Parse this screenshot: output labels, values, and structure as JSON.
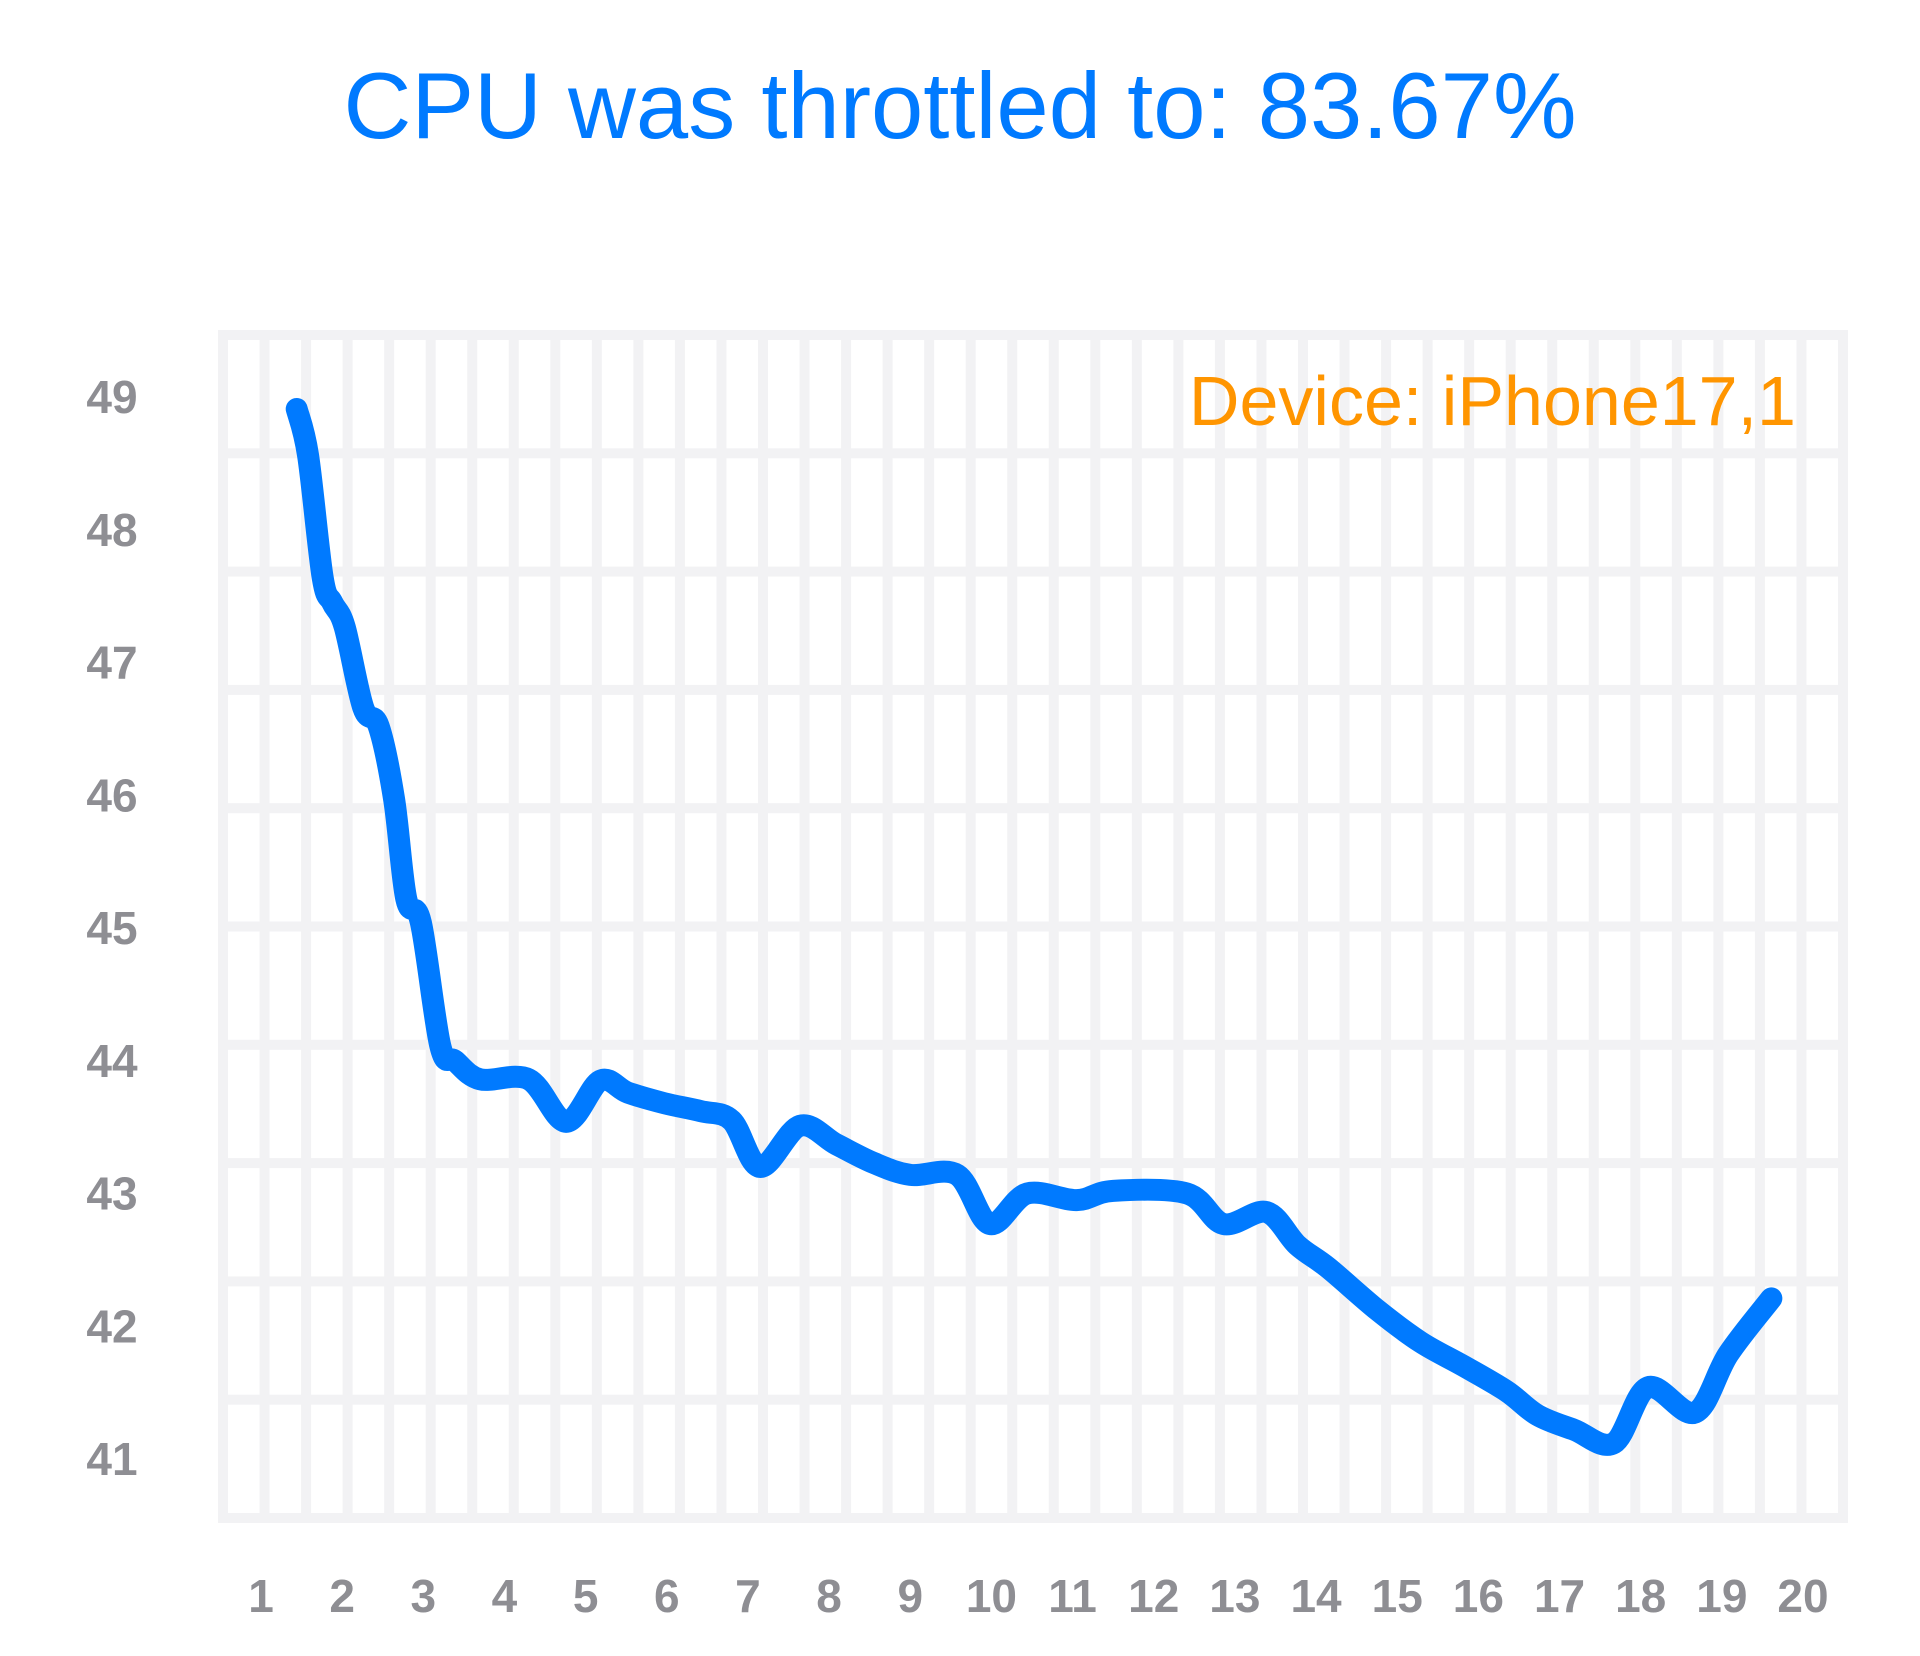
{
  "chart_data": {
    "type": "line",
    "title": "CPU was throttled to: 83.67%",
    "annotation": "Device: iPhone17,1",
    "xlabel": "",
    "ylabel": "",
    "x_ticks": [
      "1",
      "2",
      "3",
      "4",
      "5",
      "6",
      "7",
      "8",
      "9",
      "10",
      "11",
      "12",
      "13",
      "14",
      "15",
      "16",
      "17",
      "18",
      "19",
      "20"
    ],
    "y_ticks": [
      "49",
      "48",
      "47",
      "46",
      "45",
      "44",
      "43",
      "42",
      "41"
    ],
    "xlim": [
      1,
      20
    ],
    "ylim": [
      41,
      49
    ],
    "grid": true,
    "colors": {
      "title": "#007AFF",
      "line": "#007AFF",
      "annotation": "#FF9500",
      "ticks": "#8e8e93",
      "grid": "#f2f2f4"
    },
    "series": [
      {
        "x": [
          1.44,
          1.58,
          1.76,
          1.88,
          2.03,
          2.26,
          2.45,
          2.64,
          2.79,
          2.97,
          3.21,
          3.39,
          3.7,
          4.3,
          4.76,
          5.18,
          5.52,
          5.97,
          6.42,
          6.8,
          7.15,
          7.64,
          8.09,
          8.55,
          9.0,
          9.58,
          9.98,
          10.44,
          11.05,
          11.5,
          12.41,
          12.86,
          13.39,
          13.77,
          14.15,
          14.76,
          15.29,
          15.82,
          16.35,
          16.73,
          17.18,
          17.67,
          18.09,
          18.67,
          19.08,
          19.61
        ],
        "y": [
          48.91,
          48.56,
          47.64,
          47.45,
          47.27,
          46.66,
          46.52,
          45.97,
          45.22,
          45.04,
          44.11,
          44.0,
          43.86,
          43.86,
          43.54,
          43.85,
          43.76,
          43.68,
          43.62,
          43.55,
          43.2,
          43.51,
          43.37,
          43.23,
          43.14,
          43.14,
          42.77,
          43.0,
          42.95,
          43.02,
          43.0,
          42.77,
          42.86,
          42.61,
          42.44,
          42.12,
          41.88,
          41.7,
          41.51,
          41.33,
          41.22,
          41.12,
          41.54,
          41.35,
          41.79,
          42.21
        ]
      }
    ]
  }
}
